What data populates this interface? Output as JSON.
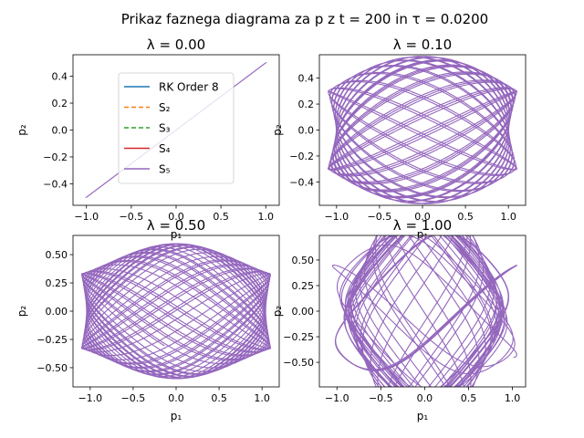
{
  "figure": {
    "suptitle": "Prikaz faznega diagrama za p z t = 200 in τ = 0.0200"
  },
  "colors": {
    "rk8": "#1f77b4",
    "s2": "#ff7f0e",
    "s3": "#2ca02c",
    "s4": "#d62728",
    "s5": "#9467bd"
  },
  "chart_data": [
    {
      "type": "line",
      "title": "λ = 0.00",
      "xlabel": "p₁",
      "ylabel": "p₂",
      "xlim": [
        -1.15,
        1.15
      ],
      "ylim": [
        -0.56,
        0.56
      ],
      "xticks": [
        -1.0,
        -0.5,
        0.0,
        0.5,
        1.0
      ],
      "xtick_labels": [
        "−1.0",
        "−0.5",
        "0.0",
        "0.5",
        "1.0"
      ],
      "yticks": [
        -0.4,
        -0.2,
        0.0,
        0.2,
        0.4
      ],
      "ytick_labels": [
        "−0.4",
        "−0.2",
        "0.0",
        "0.2",
        "0.4"
      ],
      "lambda": 0.0,
      "grid": false,
      "legend": {
        "placement": "center",
        "entries": [
          {
            "label": "RK Order 8",
            "style": "solid",
            "color_key": "rk8"
          },
          {
            "label": "S₂",
            "style": "dashed",
            "color_key": "s2"
          },
          {
            "label": "S₃",
            "style": "dashed",
            "color_key": "s3"
          },
          {
            "label": "S₄",
            "style": "solid",
            "color_key": "s4"
          },
          {
            "label": "S₅",
            "style": "solid",
            "color_key": "s5"
          }
        ]
      },
      "series_note": "All five series overlap; only S₅ (purple) is visible on top."
    },
    {
      "type": "line",
      "title": "λ = 0.10",
      "xlabel": "p₁",
      "ylabel": "p₂",
      "xlim": [
        -1.2,
        1.2
      ],
      "ylim": [
        -0.58,
        0.58
      ],
      "xticks": [
        -1.0,
        -0.5,
        0.0,
        0.5,
        1.0
      ],
      "xtick_labels": [
        "−1.0",
        "−0.5",
        "0.0",
        "0.5",
        "1.0"
      ],
      "yticks": [
        -0.4,
        -0.2,
        0.0,
        0.2,
        0.4
      ],
      "ytick_labels": [
        "−0.4",
        "−0.2",
        "0.0",
        "0.2",
        "0.4"
      ],
      "lambda": 0.1,
      "grid": false
    },
    {
      "type": "line",
      "title": "λ = 0.50",
      "xlabel": "p₁",
      "ylabel": "p₂",
      "xlim": [
        -1.2,
        1.2
      ],
      "ylim": [
        -0.67,
        0.67
      ],
      "xticks": [
        -1.0,
        -0.5,
        0.0,
        0.5,
        1.0
      ],
      "xtick_labels": [
        "−1.0",
        "−0.5",
        "0.0",
        "0.5",
        "1.0"
      ],
      "yticks": [
        -0.5,
        -0.25,
        0.0,
        0.25,
        0.5
      ],
      "ytick_labels": [
        "−0.50",
        "−0.25",
        "0.00",
        "0.25",
        "0.50"
      ],
      "lambda": 0.5,
      "grid": false
    },
    {
      "type": "line",
      "title": "λ = 1.00",
      "xlabel": "p₁",
      "ylabel": "p₂",
      "xlim": [
        -1.2,
        1.15
      ],
      "ylim": [
        -0.74,
        0.74
      ],
      "xticks": [
        -1.0,
        -0.5,
        0.0,
        0.5,
        1.0
      ],
      "xtick_labels": [
        "−1.0",
        "−0.5",
        "0.0",
        "0.5",
        "1.0"
      ],
      "yticks": [
        -0.5,
        -0.25,
        0.0,
        0.25,
        0.5
      ],
      "ytick_labels": [
        "−0.50",
        "−0.25",
        "0.00",
        "0.25",
        "0.50"
      ],
      "lambda": 1.0,
      "grid": false
    }
  ]
}
